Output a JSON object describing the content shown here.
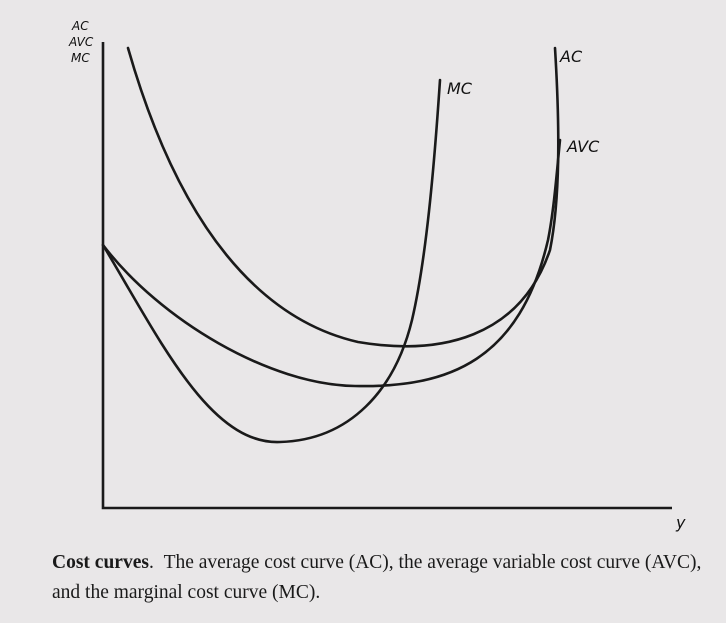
{
  "diagram": {
    "y_axis_labels": [
      "AC",
      "AVC",
      "MC"
    ],
    "x_axis_label": "y",
    "curves": [
      {
        "id": "ac",
        "label": "AC"
      },
      {
        "id": "avc",
        "label": "AVC"
      },
      {
        "id": "mc",
        "label": "MC"
      }
    ]
  },
  "caption": {
    "title": "Cost curves",
    "separator": ".",
    "text": "The average cost curve (AC), the average variable cost curve (AVC), and the marginal cost curve (MC)."
  }
}
